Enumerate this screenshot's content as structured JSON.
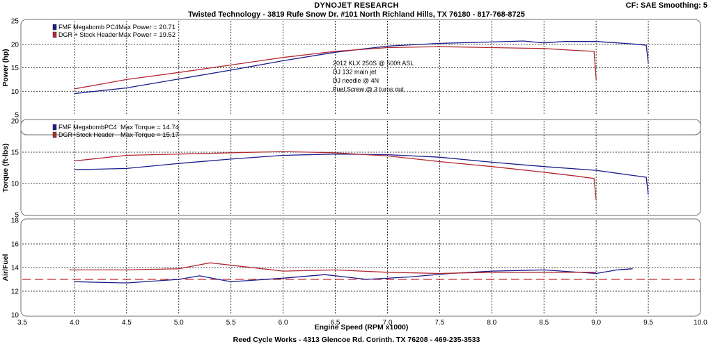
{
  "header": {
    "title": "DYNOJET RESEARCH",
    "subtitle": "Twisted Technology - 3819 Rufe Snow Dr. #101 North Richland Hills, TX 76180 - 817-768-8725",
    "cf_info": "CF: SAE  Smoothing: 5"
  },
  "footer": "Reed Cycle Works - 4313 Glencoe Rd. Corinth. TX 76208 - 469-235-3533",
  "colors": {
    "blue": "#1a1a8c",
    "red": "#b0282e",
    "afr_ref": "#c0282e",
    "grid": "#000000",
    "panel_border": "#6e6e6e"
  },
  "chart_data": {
    "type": "line",
    "xlabel": "Engine Speed (RPM x1000)",
    "xlim": [
      3.5,
      10.0
    ],
    "xticks": [
      "3.5",
      "4.0",
      "4.5",
      "5.0",
      "5.5",
      "6.0",
      "6.5",
      "7.0",
      "7.5",
      "8.0",
      "8.5",
      "9.0",
      "9.5",
      "10.0"
    ],
    "annotation": [
      "2012 KLX 250S @ 500ft ASL",
      "DJ 132 main jet",
      "DJ needle @ 4N",
      "Fuel Screw @ 3 turns out"
    ],
    "panels": [
      {
        "id": "power",
        "ylabel": "Power (hp)",
        "ylim": [
          5,
          25
        ],
        "yticks": [
          "5",
          "10",
          "15",
          "20",
          "25"
        ],
        "legend": [
          {
            "name": "FMF Megabomb PC4",
            "stat": "Max Power = 20.71",
            "color": "blue"
          },
          {
            "name": "DGR + Stock Header",
            "stat": "Max Power = 19.52",
            "color": "red"
          }
        ],
        "series": [
          {
            "name": "FMF Megabomb PC4",
            "color": "blue",
            "points": [
              [
                4.0,
                9.5
              ],
              [
                4.5,
                10.7
              ],
              [
                5.0,
                12.6
              ],
              [
                5.5,
                14.5
              ],
              [
                6.0,
                16.5
              ],
              [
                6.5,
                18.3
              ],
              [
                7.0,
                19.6
              ],
              [
                7.5,
                20.2
              ],
              [
                8.0,
                20.5
              ],
              [
                8.3,
                20.7
              ],
              [
                8.5,
                20.3
              ],
              [
                8.7,
                20.6
              ],
              [
                9.0,
                20.6
              ],
              [
                9.2,
                20.3
              ],
              [
                9.4,
                20.0
              ],
              [
                9.48,
                19.8
              ],
              [
                9.5,
                16.0
              ]
            ]
          },
          {
            "name": "DGR + Stock Header",
            "color": "red",
            "points": [
              [
                4.0,
                10.5
              ],
              [
                4.5,
                12.5
              ],
              [
                5.0,
                14.0
              ],
              [
                5.5,
                15.6
              ],
              [
                6.0,
                17.2
              ],
              [
                6.5,
                18.5
              ],
              [
                7.0,
                19.3
              ],
              [
                7.5,
                19.5
              ],
              [
                8.0,
                19.3
              ],
              [
                8.5,
                19.1
              ],
              [
                8.8,
                18.7
              ],
              [
                8.98,
                18.5
              ],
              [
                9.0,
                12.5
              ]
            ]
          }
        ]
      },
      {
        "id": "torque",
        "ylabel": "Torque (ft-lbs)",
        "ylim": [
          5,
          20
        ],
        "yticks": [
          "5",
          "10",
          "15",
          "20"
        ],
        "legend": [
          {
            "name": "FMF MegabombPC4",
            "stat": "Max Torque = 14.74",
            "color": "blue"
          },
          {
            "name": "DGR+Stock Header",
            "stat": "Max Torque = 15.17",
            "color": "red"
          }
        ],
        "series": [
          {
            "name": "FMF MegabombPC4",
            "color": "blue",
            "points": [
              [
                4.0,
                12.2
              ],
              [
                4.5,
                12.4
              ],
              [
                5.0,
                13.2
              ],
              [
                5.5,
                13.9
              ],
              [
                6.0,
                14.5
              ],
              [
                6.5,
                14.7
              ],
              [
                7.0,
                14.6
              ],
              [
                7.5,
                14.2
              ],
              [
                8.0,
                13.4
              ],
              [
                8.5,
                12.7
              ],
              [
                9.0,
                12.1
              ],
              [
                9.3,
                11.4
              ],
              [
                9.48,
                11.0
              ],
              [
                9.5,
                8.2
              ]
            ]
          },
          {
            "name": "DGR+Stock Header",
            "color": "red",
            "points": [
              [
                4.0,
                13.6
              ],
              [
                4.5,
                14.5
              ],
              [
                5.0,
                14.7
              ],
              [
                5.5,
                14.9
              ],
              [
                6.0,
                15.1
              ],
              [
                6.5,
                14.9
              ],
              [
                7.0,
                14.4
              ],
              [
                7.5,
                13.5
              ],
              [
                8.0,
                12.7
              ],
              [
                8.5,
                11.8
              ],
              [
                8.8,
                11.2
              ],
              [
                8.98,
                10.8
              ],
              [
                9.0,
                7.3
              ]
            ]
          }
        ]
      },
      {
        "id": "afr",
        "ylabel": "Air/Fuel",
        "ylim": [
          10,
          18
        ],
        "yticks": [
          "10",
          "12",
          "14",
          "16",
          "18"
        ],
        "reference_line": 13.0,
        "series": [
          {
            "name": "FMF Megabomb PC4",
            "color": "blue",
            "points": [
              [
                4.0,
                12.8
              ],
              [
                4.5,
                12.7
              ],
              [
                5.0,
                13.0
              ],
              [
                5.2,
                13.3
              ],
              [
                5.5,
                12.8
              ],
              [
                6.0,
                13.1
              ],
              [
                6.4,
                13.4
              ],
              [
                6.8,
                13.0
              ],
              [
                7.2,
                13.2
              ],
              [
                7.6,
                13.5
              ],
              [
                8.0,
                13.7
              ],
              [
                8.5,
                13.8
              ],
              [
                9.0,
                13.5
              ],
              [
                9.2,
                13.8
              ],
              [
                9.35,
                13.9
              ]
            ]
          },
          {
            "name": "DGR + Stock Header",
            "color": "red",
            "points": [
              [
                3.95,
                13.8
              ],
              [
                4.5,
                13.8
              ],
              [
                5.0,
                13.9
              ],
              [
                5.3,
                14.4
              ],
              [
                5.6,
                14.1
              ],
              [
                6.0,
                13.7
              ],
              [
                6.5,
                13.8
              ],
              [
                7.0,
                13.6
              ],
              [
                7.5,
                13.5
              ],
              [
                8.0,
                13.6
              ],
              [
                8.5,
                13.6
              ],
              [
                9.0,
                13.6
              ]
            ]
          }
        ]
      }
    ]
  }
}
